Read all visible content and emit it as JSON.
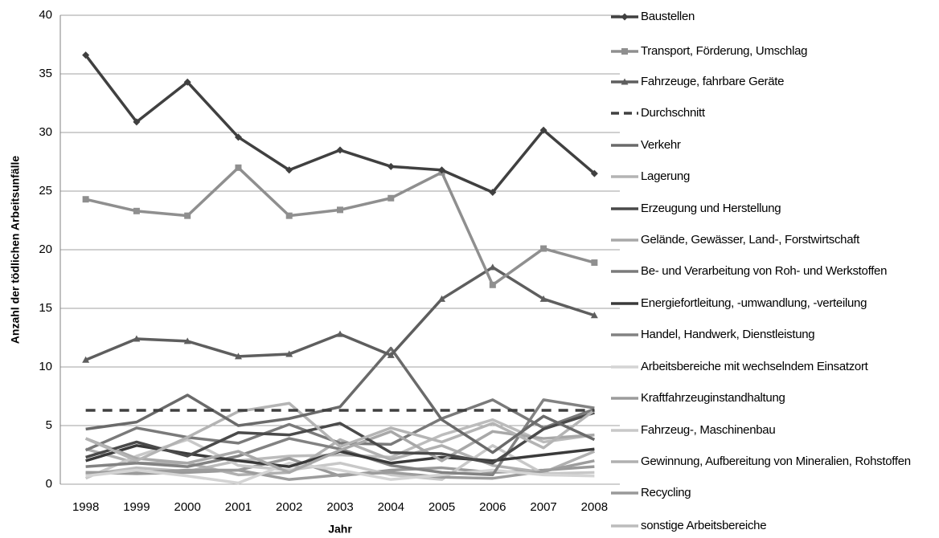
{
  "chart_data": {
    "type": "line",
    "y_label": "Anzahl der tödlichen Arbeitsunfälle",
    "x_label": "Jahr",
    "categories": [
      "1998",
      "1999",
      "2000",
      "2001",
      "2002",
      "2003",
      "2004",
      "2005",
      "2006",
      "2007",
      "2008"
    ],
    "ylim": [
      0,
      40
    ],
    "yticks": [
      0,
      5,
      10,
      15,
      20,
      25,
      30,
      35,
      40
    ],
    "grid": true,
    "legend": "right",
    "series": [
      {
        "name": "Baustellen",
        "color": "#404040",
        "marker": "diamond",
        "values": [
          36.6,
          30.9,
          34.3,
          29.6,
          26.8,
          28.5,
          27.1,
          26.8,
          24.9,
          30.2,
          26.5
        ]
      },
      {
        "name": "Transport, Förderung, Umschlag",
        "color": "#8f8f8f",
        "marker": "square",
        "values": [
          24.3,
          23.3,
          22.9,
          27.0,
          22.9,
          23.4,
          24.4,
          26.6,
          17.0,
          20.1,
          18.9
        ]
      },
      {
        "name": "Fahrzeuge, fahrbare Geräte",
        "color": "#5e5e5e",
        "marker": "triangle",
        "values": [
          10.6,
          12.4,
          12.2,
          10.9,
          11.1,
          12.8,
          11.0,
          15.8,
          18.5,
          15.8,
          14.4
        ]
      },
      {
        "name": "Durchschnitt",
        "color": "#404040",
        "dash": true,
        "values": [
          6.3,
          6.3,
          6.3,
          6.3,
          6.3,
          6.3,
          6.3,
          6.3,
          6.3,
          6.3,
          6.3
        ]
      },
      {
        "name": "Verkehr",
        "color": "#6a6a6a",
        "values": [
          4.7,
          5.3,
          7.6,
          5.0,
          5.6,
          6.6,
          11.6,
          5.5,
          2.7,
          5.8,
          3.8
        ]
      },
      {
        "name": "Lagerung",
        "color": "#b4b4b4",
        "values": [
          3.9,
          2.0,
          4.0,
          6.2,
          6.9,
          3.2,
          4.8,
          3.6,
          5.2,
          3.1,
          6.3
        ]
      },
      {
        "name": "Erzeugung und Herstellung",
        "color": "#4a4a4a",
        "values": [
          2.3,
          3.6,
          2.4,
          4.4,
          4.2,
          5.2,
          2.7,
          2.6,
          1.8,
          4.7,
          6.1
        ]
      },
      {
        "name": "Gelände, Gewässer, Land-, Forstwirtschaft",
        "color": "#a8a8a8",
        "values": [
          3.9,
          2.2,
          1.8,
          2.8,
          1.0,
          2.9,
          4.5,
          2.0,
          4.5,
          3.9,
          4.2
        ]
      },
      {
        "name": "Be- und Verarbeitung von Roh- und Werkstoffen",
        "color": "#7a7a7a",
        "values": [
          2.9,
          4.8,
          4.0,
          3.5,
          5.1,
          3.5,
          3.4,
          5.6,
          7.2,
          4.8,
          6.4
        ]
      },
      {
        "name": "Energiefortleitung, -umwandlung, -verteilung",
        "color": "#3a3a3a",
        "values": [
          2.0,
          3.3,
          2.6,
          2.0,
          1.5,
          2.8,
          1.8,
          2.3,
          2.0,
          2.5,
          3.0
        ]
      },
      {
        "name": "Handel, Handwerk, Dienstleistung",
        "color": "#828282",
        "values": [
          1.5,
          1.8,
          1.5,
          2.4,
          3.9,
          3.0,
          1.6,
          1.0,
          0.8,
          7.2,
          6.5
        ]
      },
      {
        "name": "Arbeitsbereiche mit wechselndem Einsatzort",
        "color": "#d4d4d4",
        "values": [
          0.7,
          1.2,
          0.7,
          0.1,
          1.8,
          1.2,
          0.4,
          0.8,
          1.2,
          0.8,
          0.7
        ]
      },
      {
        "name": "Kraftfahrzeuginstandhaltung",
        "color": "#9c9c9c",
        "values": [
          1.0,
          1.0,
          1.2,
          1.2,
          0.4,
          0.8,
          1.0,
          0.6,
          0.5,
          1.1,
          2.0
        ]
      },
      {
        "name": "Fahrzeug-, Maschinenbau",
        "color": "#c8c8c8",
        "values": [
          0.5,
          2.4,
          3.8,
          1.6,
          1.2,
          1.8,
          0.8,
          0.4,
          3.3,
          0.9,
          1.0
        ]
      },
      {
        "name": "Gewinnung, Aufbereitung von Mineralien, Rohstoffen",
        "color": "#b0b0b0",
        "values": [
          3.0,
          1.8,
          1.8,
          0.8,
          1.0,
          3.8,
          2.1,
          3.3,
          1.6,
          1.0,
          2.8
        ]
      },
      {
        "name": "Recycling",
        "color": "#999999",
        "values": [
          1.0,
          0.9,
          1.0,
          1.2,
          2.2,
          0.7,
          1.2,
          1.4,
          1.0,
          1.2,
          1.5
        ]
      },
      {
        "name": "sonstige Arbeitsbereiche",
        "color": "#bcbcbc",
        "values": [
          0.8,
          1.4,
          1.1,
          2.0,
          2.4,
          2.5,
          2.3,
          4.2,
          5.5,
          3.6,
          4.2
        ]
      }
    ]
  }
}
